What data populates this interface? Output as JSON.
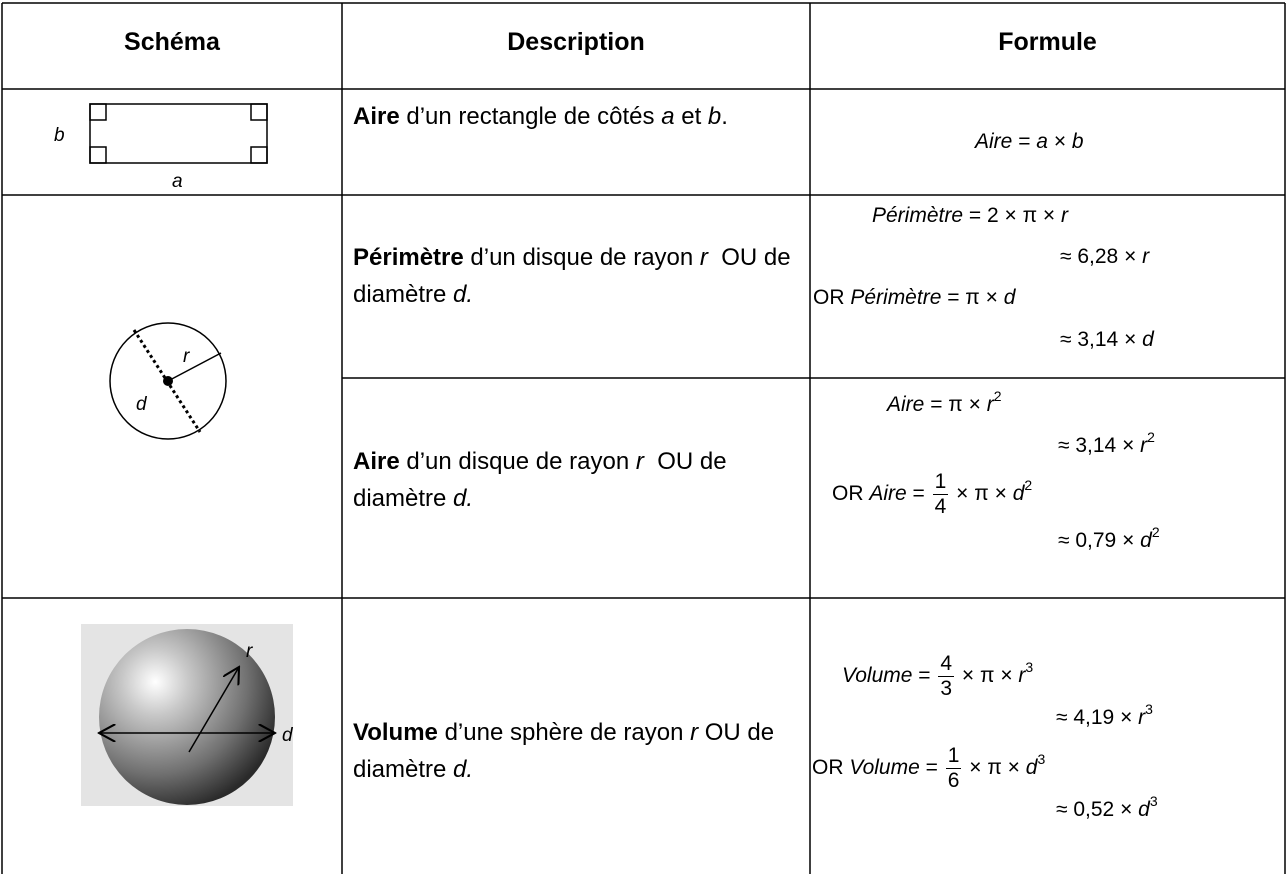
{
  "table": {
    "headers": [
      "Schéma",
      "Description",
      "Formule"
    ],
    "rows": [
      {
        "schema": [
          "b",
          "a"
        ],
        "description": [
          "Aire",
          " d’un rectangle de côtés ",
          "a",
          " et ",
          "b",
          "."
        ],
        "formula": [
          [
            "Aire",
            " = ",
            "a",
            " × ",
            "b"
          ]
        ]
      },
      {
        "schema": [
          "r",
          "d"
        ],
        "description": [
          "Périmètre",
          " d’un disque de rayon ",
          "r",
          "  OU de diamètre ",
          "d."
        ],
        "formula": [
          [
            "Périmètre",
            " = 2 × π × ",
            "r"
          ],
          [
            "≈ 6,28 × ",
            "r"
          ],
          [
            "OR ",
            "Périmètre",
            " = π × ",
            "d"
          ],
          [
            "≈ 3,14 × ",
            "d"
          ]
        ]
      },
      {
        "description": [
          "Aire",
          " d’un disque de rayon ",
          "r",
          "  OU de diamètre ",
          "d."
        ],
        "formula": [
          [
            "Aire",
            " = π × ",
            "r",
            "2"
          ],
          [
            "≈ 3,14 × ",
            "r",
            "2"
          ],
          [
            "OR ",
            "Aire",
            " = ",
            "1",
            "4",
            " × π × ",
            "d",
            "2"
          ],
          [
            "≈ 0,79 × ",
            "d",
            "2"
          ]
        ]
      },
      {
        "schema": [
          "r",
          "d"
        ],
        "description": [
          "Volume",
          " d’une sphère de rayon ",
          "r",
          " OU de diamètre ",
          "d."
        ],
        "formula": [
          [
            "Volume",
            " = ",
            "4",
            "3",
            " × π × ",
            "r",
            "3"
          ],
          [
            "≈ 4,19 × ",
            "r",
            "3"
          ],
          [
            "OR ",
            "Volume",
            " = ",
            "1",
            "6",
            " × π × ",
            "d",
            "3"
          ],
          [
            "≈ 0,52 × ",
            "d",
            "3"
          ]
        ]
      }
    ]
  }
}
